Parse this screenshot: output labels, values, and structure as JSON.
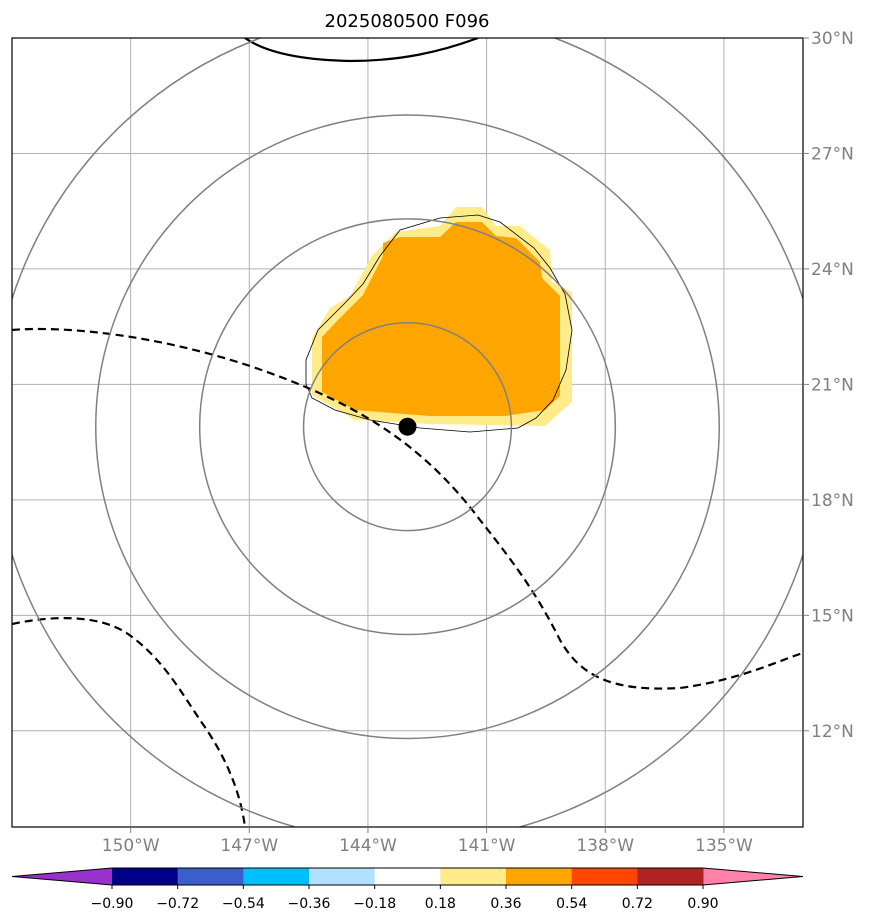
{
  "title": "2025080500 F096",
  "map": {
    "lon_range": [
      -153,
      -133
    ],
    "lat_range": [
      9.5,
      30
    ],
    "gridlines": true,
    "lat_ticks": [
      {
        "value": 30,
        "label": "30°N"
      },
      {
        "value": 27,
        "label": "27°N"
      },
      {
        "value": 24,
        "label": "24°N"
      },
      {
        "value": 21,
        "label": "21°N"
      },
      {
        "value": 18,
        "label": "18°N"
      },
      {
        "value": 15,
        "label": "15°N"
      },
      {
        "value": 12,
        "label": "12°N"
      }
    ],
    "lon_ticks": [
      {
        "value": -150,
        "label": "150°W"
      },
      {
        "value": -147,
        "label": "147°W"
      },
      {
        "value": -144,
        "label": "144°W"
      },
      {
        "value": -141,
        "label": "141°W"
      },
      {
        "value": -138,
        "label": "138°W"
      },
      {
        "value": -135,
        "label": "135°W"
      }
    ],
    "storm_center": {
      "lon": -143,
      "lat": 19.9,
      "color": "#000000"
    },
    "range_rings_deg": [
      2.7,
      5.4,
      8.1,
      10.8
    ],
    "ring_color": "#808080",
    "anomaly_region": {
      "fill_light": "#ffeb8a",
      "fill_main": "#ffa500"
    }
  },
  "colorbar": {
    "colors": [
      "#9932cc",
      "#00008b",
      "#3a5fcd",
      "#00bfff",
      "#b0e2ff",
      "#ffffff",
      "#ffeb8a",
      "#ffa500",
      "#ff4500",
      "#b22222",
      "#ff82ab"
    ],
    "tick_labels": [
      "−0.90",
      "−0.72",
      "−0.54",
      "−0.36",
      "−0.18",
      "0.18",
      "0.36",
      "0.54",
      "0.72",
      "0.90"
    ],
    "extend": "both"
  }
}
